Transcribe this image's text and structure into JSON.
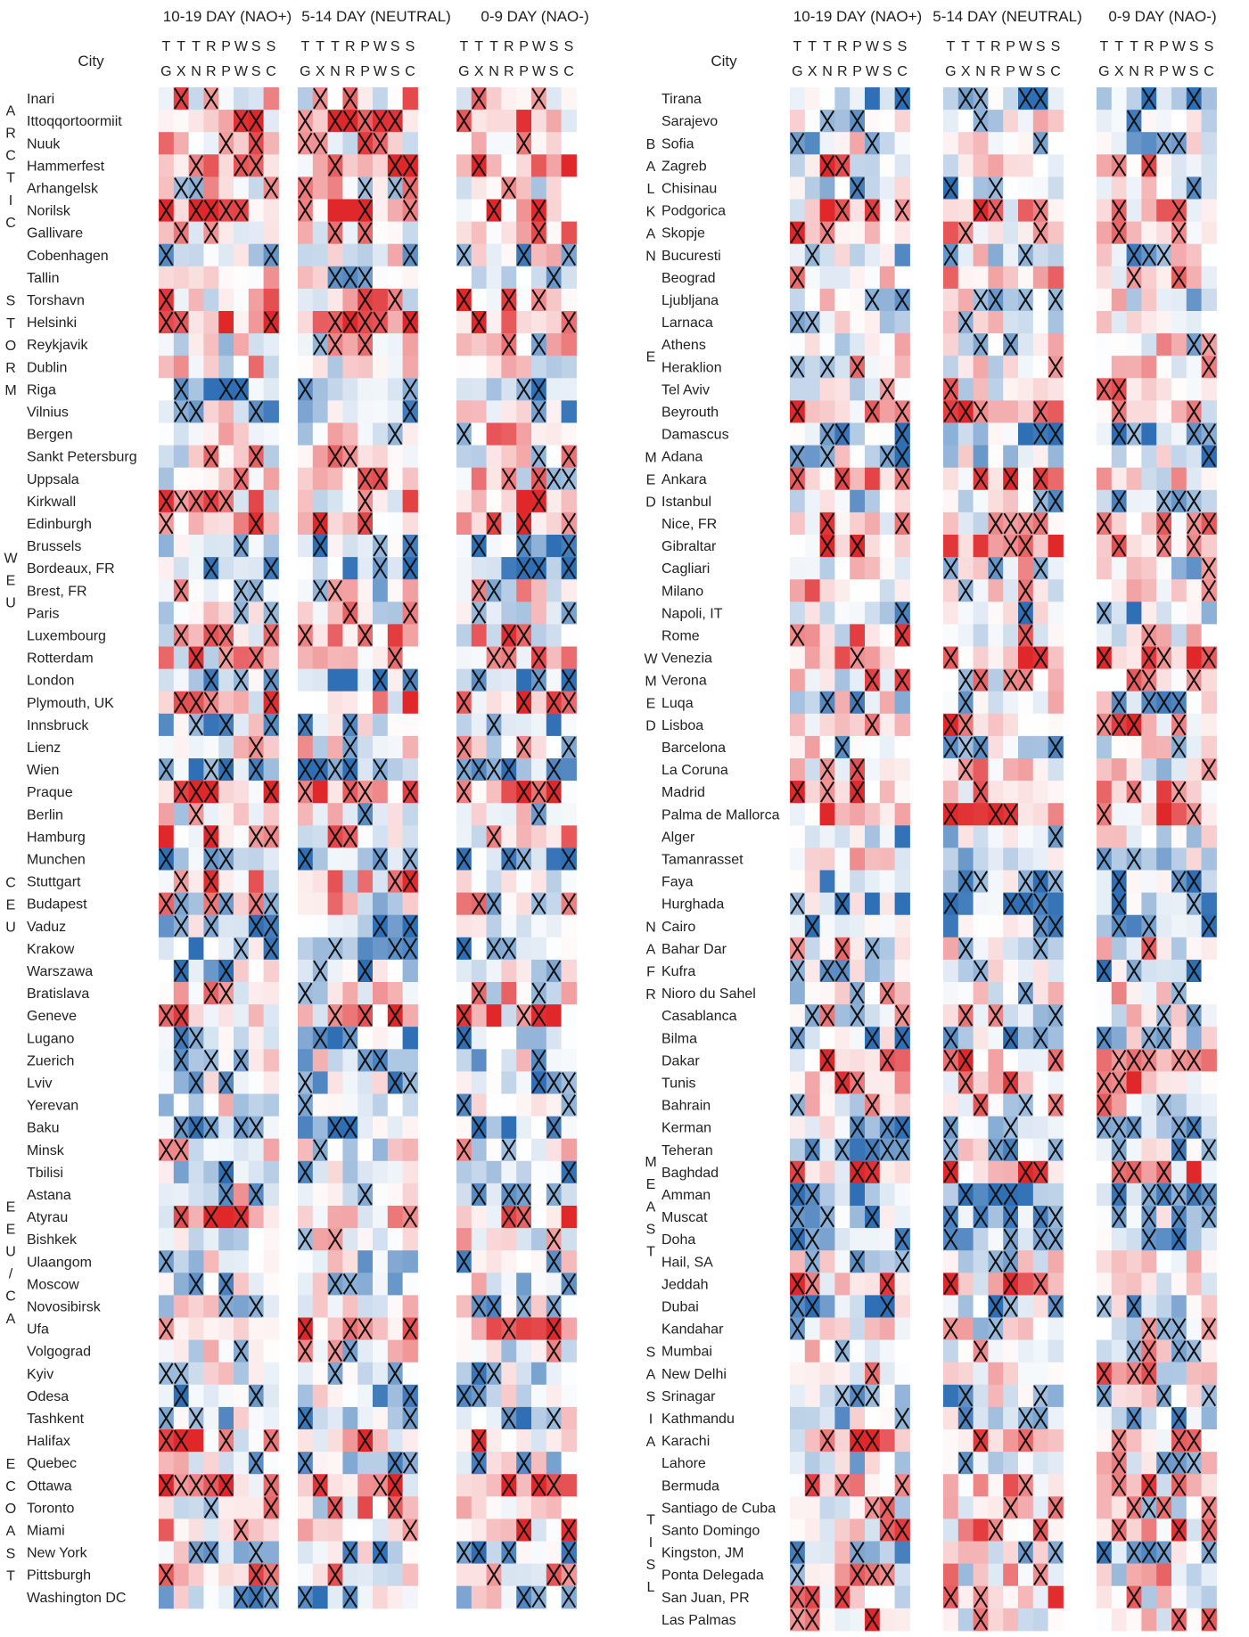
{
  "chart_data": {
    "type": "heatmap",
    "title": "",
    "legend": "none",
    "grid": false,
    "period_labels": [
      "10-19 DAY (NAO+)",
      "5-14 DAY (NEUTRAL)",
      "0-9 DAY (NAO-)"
    ],
    "variables_top": [
      "T",
      "T",
      "T",
      "R",
      "P",
      "W",
      "S",
      "S"
    ],
    "variables_bottom": [
      "G",
      "X",
      "N",
      "R",
      "P",
      "W",
      "S",
      "C"
    ],
    "city_header": "City",
    "value_scale": {
      "min": -1,
      "max": 1,
      "negative_color": "#2f6fb5",
      "positive_color": "#e0282b",
      "neutral_color": "#ffffff"
    },
    "marker": "X marks a highlighted cell",
    "panels": [
      {
        "regions": [
          {
            "label": "ARCTIC",
            "cities": [
              "Inari",
              "Ittoqqortoormiit",
              "Nuuk",
              "Hammerfest",
              "Arhangelsk",
              "Norilsk",
              "Gallivare"
            ]
          },
          {
            "label": "STORM",
            "cities": [
              "Cobenhagen",
              "Tallin",
              "Torshavn",
              "Helsinki",
              "Reykjavik",
              "Dublin",
              "Riga",
              "Vilnius",
              "Bergen"
            ]
          },
          {
            "label": "WEU",
            "cities": [
              "Sankt Petersburg",
              "Uppsala",
              "Kirkwall",
              "Edinburgh",
              "Brussels",
              "Bordeaux, FR",
              "Brest, FR",
              "Paris",
              "Luxembourg",
              "Rotterdam",
              "London",
              "Plymouth, UK"
            ]
          },
          {
            "label": "CEU",
            "cities": [
              "Innsbruck",
              "Lienz",
              "Wien",
              "Praque",
              "Berlin",
              "Hamburg",
              "Munchen",
              "Stuttgart",
              "Budapest",
              "Vaduz",
              "Krakow",
              "Warszawa",
              "Bratislava",
              "Geneve",
              "Lugano",
              "Zuerich",
              "Lviv"
            ]
          },
          {
            "label": "EEU/CA",
            "cities": [
              "Yerevan",
              "Baku",
              "Minsk",
              "Tbilisi",
              "Astana",
              "Atyrau",
              "Bishkek",
              "Ulaangom",
              "Moscow",
              "Novosibirsk",
              "Ufa",
              "Volgograd",
              "Kyiv",
              "Odesa",
              "Tashkent"
            ]
          },
          {
            "label": "ECOAST",
            "cities": [
              "Halifax",
              "Quebec",
              "Ottawa",
              "Toronto",
              "Miami",
              "New York",
              "Pittsburgh",
              "Washington DC"
            ]
          }
        ]
      },
      {
        "regions": [
          {
            "label": "BALKAN",
            "cities": [
              "Tirana",
              "Sarajevo",
              "Sofia",
              "Zagreb",
              "Chisinau",
              "Podgorica",
              "Skopje",
              "Bucuresti",
              "Beograd",
              "Ljubljana"
            ]
          },
          {
            "label": "E",
            "cities": [
              "Larnaca",
              "Athens",
              "Heraklion",
              "Tel Aviv"
            ]
          },
          {
            "label": "MED",
            "cities": [
              "Beyrouth",
              "Damascus",
              "Adana",
              "Ankara",
              "Istanbul",
              "Nice, FR",
              "Gibraltar"
            ]
          },
          {
            "label": "WMED",
            "cities": [
              "Cagliari",
              "Milano",
              "Napoli, IT",
              "Rome",
              "Venezia",
              "Verona",
              "Luqa",
              "Lisboa",
              "Barcelona",
              "La Coruna",
              "Madrid",
              "Palma de Mallorca"
            ]
          },
          {
            "label": "NAFR",
            "cities": [
              "Alger",
              "Tamanrasset",
              "Faya",
              "Hurghada",
              "Cairo",
              "Bahar Dar",
              "Kufra",
              "Nioro du Sahel",
              "Casablanca",
              "Bilma",
              "Dakar",
              "Tunis"
            ]
          },
          {
            "label": "MEAST",
            "cities": [
              "Bahrain",
              "Kerman",
              "Teheran",
              "Baghdad",
              "Amman",
              "Muscat",
              "Doha",
              "Hail, SA",
              "Jeddah",
              "Dubai"
            ]
          },
          {
            "label": "SASIA",
            "cities": [
              "Kandahar",
              "Mumbai",
              "New Delhi",
              "Srinagar",
              "Kathmandu",
              "Karachi",
              "Lahore"
            ]
          },
          {
            "label": "TISL",
            "cities": [
              "Bermuda",
              "Santiago de Cuba",
              "Santo Domingo",
              "Kingston, JM",
              "Ponta Delegada",
              "San Juan, PR",
              "Las Palmas"
            ]
          }
        ]
      }
    ],
    "values_note": "Each city row holds 24 cells (3 periods × 8 variables) colored from blue (negative) to red (positive) with crosses on highlighted cells."
  }
}
